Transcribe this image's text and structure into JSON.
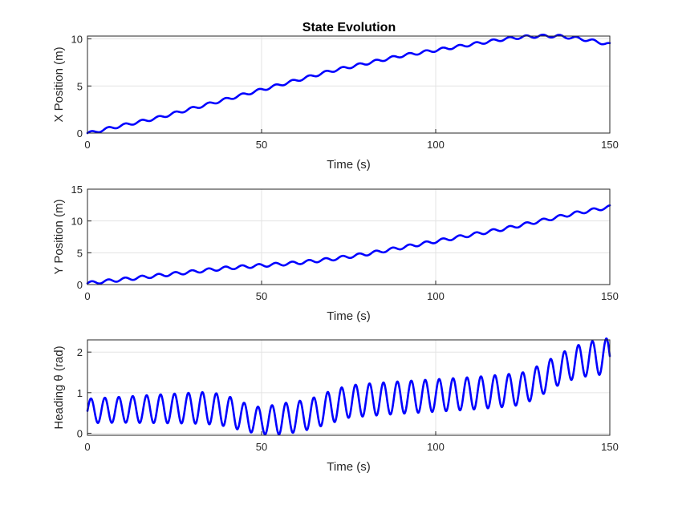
{
  "figure": {
    "title": "State Evolution",
    "line_color": "#0000ff"
  },
  "chart_data": [
    {
      "type": "line",
      "title": "State Evolution",
      "xlabel": "Time (s)",
      "ylabel": "X Position (m)",
      "xlim": [
        0,
        150
      ],
      "ylim": [
        0,
        10.3
      ],
      "xticks": [
        0,
        50,
        100,
        150
      ],
      "yticks": [
        0,
        5,
        10
      ],
      "grid": true,
      "series": [
        {
          "x": [
            0,
            2,
            5,
            10,
            15,
            20,
            25,
            30,
            35,
            40,
            45,
            50,
            55,
            60,
            65,
            70,
            75,
            80,
            85,
            90,
            95,
            100,
            105,
            110,
            115,
            120,
            125,
            130,
            135,
            140,
            145,
            150
          ],
          "y": [
            0,
            0.1,
            0.4,
            0.8,
            1.2,
            1.6,
            2.1,
            2.6,
            3.1,
            3.6,
            4.1,
            4.6,
            5.1,
            5.6,
            6.1,
            6.6,
            7.0,
            7.4,
            7.8,
            8.2,
            8.5,
            8.8,
            9.1,
            9.4,
            9.7,
            10.0,
            10.2,
            10.3,
            10.3,
            10.1,
            9.8,
            9.4
          ],
          "osc_amplitude": 0.15,
          "osc_period_s": 4.8
        }
      ]
    },
    {
      "type": "line",
      "xlabel": "Time (s)",
      "ylabel": "Y Position (m)",
      "xlim": [
        0,
        150
      ],
      "ylim": [
        0,
        15
      ],
      "xticks": [
        0,
        50,
        100,
        150
      ],
      "yticks": [
        0,
        5,
        10,
        15
      ],
      "grid": true,
      "series": [
        {
          "x": [
            0,
            5,
            10,
            15,
            20,
            25,
            30,
            35,
            40,
            45,
            50,
            55,
            60,
            65,
            70,
            75,
            80,
            85,
            90,
            95,
            100,
            105,
            110,
            115,
            120,
            125,
            130,
            135,
            140,
            145,
            150
          ],
          "y": [
            0.2,
            0.5,
            0.8,
            1.1,
            1.4,
            1.7,
            2.0,
            2.3,
            2.6,
            2.8,
            3.0,
            3.2,
            3.4,
            3.7,
            4.0,
            4.4,
            4.8,
            5.3,
            5.8,
            6.3,
            6.8,
            7.3,
            7.8,
            8.3,
            8.8,
            9.4,
            10.0,
            10.6,
            11.2,
            11.7,
            12.2
          ],
          "osc_amplitude": 0.25,
          "osc_period_s": 4.8
        }
      ]
    },
    {
      "type": "line",
      "xlabel": "Time (s)",
      "ylabel": "Heading θ (rad)",
      "xlim": [
        0,
        150
      ],
      "ylim": [
        -0.05,
        2.3
      ],
      "xticks": [
        0,
        50,
        100,
        150
      ],
      "yticks": [
        0,
        1,
        2
      ],
      "grid": true,
      "series": [
        {
          "x": [
            0,
            10,
            20,
            30,
            35,
            40,
            45,
            50,
            55,
            60,
            65,
            70,
            75,
            80,
            90,
            100,
            110,
            120,
            125,
            130,
            135,
            140,
            145,
            150
          ],
          "center": [
            0.55,
            0.58,
            0.6,
            0.62,
            0.62,
            0.55,
            0.4,
            0.3,
            0.35,
            0.4,
            0.5,
            0.65,
            0.78,
            0.82,
            0.88,
            0.93,
            0.98,
            1.05,
            1.1,
            1.3,
            1.55,
            1.75,
            1.85,
            1.9
          ],
          "amplitude": [
            0.3,
            0.32,
            0.35,
            0.38,
            0.4,
            0.38,
            0.35,
            0.33,
            0.38,
            0.38,
            0.38,
            0.4,
            0.4,
            0.4,
            0.4,
            0.4,
            0.4,
            0.4,
            0.4,
            0.38,
            0.38,
            0.4,
            0.42,
            0.45
          ],
          "osc_period_s": 4.0
        }
      ]
    }
  ]
}
